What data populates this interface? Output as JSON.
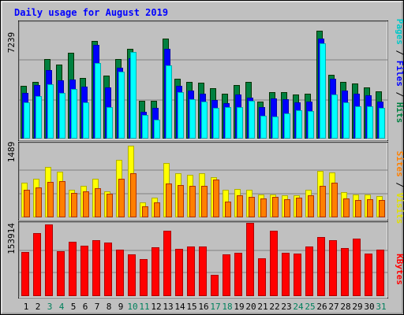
{
  "chart_data": [
    {
      "type": "bar",
      "title": "Daily usage for August 2019",
      "panel": "top",
      "categories": [
        "1",
        "2",
        "3",
        "4",
        "5",
        "6",
        "7",
        "8",
        "9",
        "10",
        "11",
        "12",
        "13",
        "14",
        "15",
        "16",
        "17",
        "18",
        "19",
        "20",
        "21",
        "22",
        "23",
        "24",
        "25",
        "26",
        "27",
        "28",
        "29",
        "30",
        "31"
      ],
      "weekend_days": [
        "3",
        "4",
        "10",
        "11",
        "17",
        "18",
        "24",
        "25",
        "31"
      ],
      "ymax_label": "7239",
      "ylim": [
        0,
        7239
      ],
      "right_labels": [
        "Pages",
        "Files",
        "Hits"
      ],
      "series": [
        {
          "name": "Hits",
          "color": "#008040",
          "values": [
            3330,
            3590,
            5030,
            4650,
            5410,
            3800,
            6160,
            3990,
            5000,
            5660,
            2370,
            2370,
            6290,
            3790,
            3560,
            3510,
            3190,
            2850,
            3390,
            3550,
            2340,
            2910,
            2920,
            2780,
            2830,
            6780,
            4020,
            3570,
            3460,
            3240,
            2990
          ]
        },
        {
          "name": "Files",
          "color": "#0000ff",
          "values": [
            2900,
            3380,
            4300,
            3680,
            3720,
            3260,
            5920,
            3200,
            4440,
            5060,
            1700,
            1940,
            5640,
            3340,
            3040,
            2840,
            2420,
            2240,
            2780,
            2580,
            1960,
            2520,
            2480,
            2300,
            2310,
            6300,
            3780,
            3040,
            2840,
            2740,
            2340
          ]
        },
        {
          "name": "Pages",
          "color": "#00ffff",
          "values": [
            2280,
            2700,
            3430,
            2870,
            3130,
            2260,
            4760,
            1990,
            4230,
            5430,
            1490,
            1180,
            4630,
            2910,
            2490,
            2320,
            1950,
            2000,
            1990,
            2390,
            1450,
            1380,
            1600,
            1800,
            1730,
            6000,
            2760,
            2270,
            2040,
            2010,
            1950
          ]
        }
      ]
    },
    {
      "type": "bar",
      "panel": "middle",
      "ymax_label": "1489",
      "ylim": [
        0,
        1489
      ],
      "right_labels": [
        "Sites",
        "Visits"
      ],
      "series": [
        {
          "name": "Visits",
          "color": "#ffff00",
          "values": [
            720,
            790,
            1040,
            940,
            560,
            640,
            800,
            540,
            1180,
            1480,
            310,
            410,
            1110,
            910,
            880,
            900,
            820,
            570,
            590,
            560,
            470,
            470,
            460,
            460,
            560,
            950,
            930,
            510,
            470,
            470,
            440
          ]
        },
        {
          "name": "Sites",
          "color": "#ff8000",
          "values": [
            560,
            620,
            730,
            740,
            500,
            540,
            600,
            480,
            790,
            910,
            230,
            300,
            700,
            670,
            640,
            640,
            780,
            320,
            450,
            420,
            390,
            420,
            380,
            400,
            450,
            650,
            710,
            390,
            360,
            370,
            350
          ]
        }
      ]
    },
    {
      "type": "bar",
      "panel": "bottom",
      "ymax_label": "153914",
      "ylim": [
        0,
        153914
      ],
      "right_labels": [
        "KBytes"
      ],
      "series": [
        {
          "name": "KBytes",
          "color": "#ff0000",
          "values": [
            92000,
            132000,
            150000,
            95000,
            115000,
            106000,
            118000,
            113000,
            97000,
            87000,
            78000,
            103000,
            137000,
            100000,
            104000,
            104000,
            44000,
            87000,
            91000,
            153914,
            79000,
            138000,
            91000,
            89000,
            105000,
            124000,
            118000,
            101000,
            121000,
            89000,
            97000
          ]
        }
      ]
    }
  ]
}
